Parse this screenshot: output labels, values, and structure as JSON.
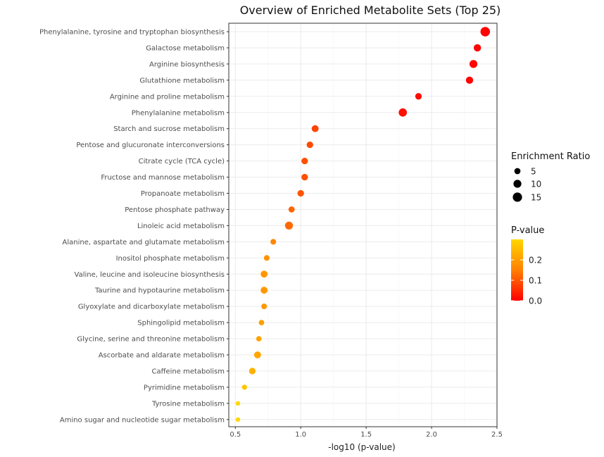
{
  "chart_data": {
    "type": "scatter",
    "title": "Overview of Enriched Metabolite Sets (Top 25)",
    "xlabel": "-log10 (p-value)",
    "ylabel": "",
    "xlim": [
      0.45,
      2.5
    ],
    "xticks": [
      0.5,
      1.0,
      1.5,
      2.0,
      2.5
    ],
    "xtick_labels": [
      "0.5",
      "1.0",
      "1.5",
      "2.0",
      "2.5"
    ],
    "grid": true,
    "categories": [
      "Phenylalanine, tyrosine and tryptophan biosynthesis",
      "Galactose metabolism",
      "Arginine biosynthesis",
      "Glutathione metabolism",
      "Arginine and proline metabolism",
      "Phenylalanine metabolism",
      "Starch and sucrose metabolism",
      "Pentose and glucuronate interconversions",
      "Citrate cycle (TCA cycle)",
      "Fructose and mannose metabolism",
      "Propanoate metabolism",
      "Pentose phosphate pathway",
      "Linoleic acid metabolism",
      "Alanine, aspartate and glutamate metabolism",
      "Inositol phosphate metabolism",
      "Valine, leucine and isoleucine biosynthesis",
      "Taurine and hypotaurine metabolism",
      "Glyoxylate and dicarboxylate metabolism",
      "Sphingolipid metabolism",
      "Glycine, serine and threonine metabolism",
      "Ascorbate and aldarate metabolism",
      "Caffeine metabolism",
      "Pyrimidine metabolism",
      "Tyrosine metabolism",
      "Amino sugar and nucleotide sugar metabolism"
    ],
    "x": [
      2.41,
      2.35,
      2.32,
      2.29,
      1.9,
      1.78,
      1.11,
      1.07,
      1.03,
      1.03,
      1.0,
      0.93,
      0.91,
      0.79,
      0.74,
      0.72,
      0.72,
      0.72,
      0.7,
      0.68,
      0.67,
      0.63,
      0.57,
      0.52,
      0.52
    ],
    "enrichment_ratio": [
      16,
      8,
      10,
      8,
      6,
      11,
      7,
      6,
      6,
      6,
      6,
      5,
      10,
      4,
      4,
      7,
      7,
      4,
      3.5,
      3.5,
      7,
      6,
      3,
      2,
      2
    ],
    "p_value": [
      0.004,
      0.0045,
      0.005,
      0.005,
      0.013,
      0.017,
      0.078,
      0.085,
      0.093,
      0.093,
      0.1,
      0.118,
      0.123,
      0.162,
      0.182,
      0.19,
      0.19,
      0.19,
      0.2,
      0.21,
      0.214,
      0.234,
      0.27,
      0.3,
      0.3
    ],
    "legend": {
      "size_title": "Enrichment Ratio",
      "size_breaks": [
        5,
        10,
        15
      ],
      "size_labels": [
        "5",
        "10",
        "15"
      ],
      "color_title": "P-value",
      "color_breaks": [
        0.0,
        0.1,
        0.2
      ],
      "color_labels": [
        "0.0",
        "0.1",
        "0.2"
      ],
      "color_range": [
        0.0,
        0.3
      ],
      "color_low": "#ff0000",
      "color_mid": "#ff8000",
      "color_high": "#ffd700",
      "placement": "right"
    }
  }
}
